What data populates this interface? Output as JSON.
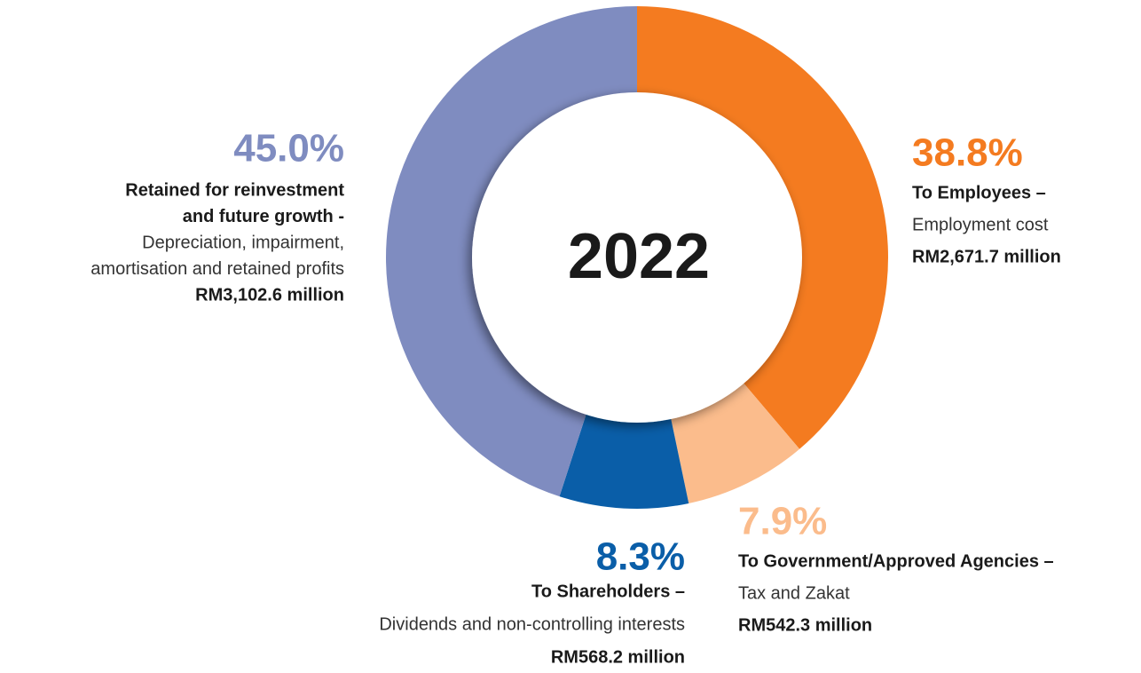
{
  "chart_data": {
    "type": "pie",
    "center_label": "2022",
    "values": [
      38.8,
      7.9,
      8.3,
      45.0
    ],
    "value_labels": [
      "38.8%",
      "7.9%",
      "8.3%",
      "45.0%"
    ],
    "colors": [
      "#f47b20",
      "#fbbc8c",
      "#0a5ea8",
      "#7f8cc0"
    ],
    "labels": [
      {
        "title": [
          "To Employees –"
        ],
        "description": [
          "Employment cost"
        ],
        "amount": "RM2,671.7 million"
      },
      {
        "title": [
          "To Government/Approved Agencies –"
        ],
        "description": [
          "Tax and Zakat"
        ],
        "amount": "RM542.3 million"
      },
      {
        "title": [
          "To Shareholders –"
        ],
        "description": [
          "Dividends and non-controlling interests"
        ],
        "amount": "RM568.2 million"
      },
      {
        "title": [
          "Retained for reinvestment",
          "and future growth -"
        ],
        "description": [
          "Depreciation, impairment,",
          "amortisation and retained profits"
        ],
        "amount": "RM3,102.6 million"
      }
    ]
  }
}
